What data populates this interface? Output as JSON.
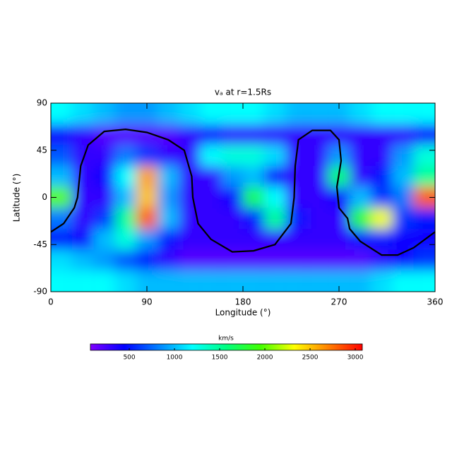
{
  "chart_data": {
    "type": "heatmap",
    "title": "vₐ at r=1.5Rs",
    "xlabel": "Longitude (°)",
    "ylabel": "Latitude (°)",
    "xlim": [
      0,
      360
    ],
    "ylim": [
      -90,
      90
    ],
    "xticks": [
      0,
      90,
      180,
      270,
      360
    ],
    "yticks": [
      -90,
      -45,
      0,
      45,
      90
    ],
    "x": [
      10,
      30,
      50,
      70,
      90,
      110,
      130,
      150,
      170,
      190,
      210,
      230,
      250,
      270,
      290,
      310,
      330,
      350
    ],
    "y": [
      80,
      60,
      40,
      20,
      0,
      -20,
      -40,
      -60,
      -80
    ],
    "z": [
      [
        1200,
        1100,
        1000,
        900,
        900,
        1000,
        1100,
        1200,
        1200,
        1200,
        1100,
        1000,
        1000,
        1000,
        1100,
        1200,
        1200,
        1200
      ],
      [
        400,
        300,
        200,
        200,
        200,
        200,
        300,
        400,
        300,
        300,
        300,
        300,
        300,
        300,
        300,
        300,
        300,
        400
      ],
      [
        700,
        300,
        300,
        800,
        600,
        300,
        300,
        1200,
        1300,
        1300,
        1100,
        300,
        300,
        900,
        300,
        300,
        900,
        1300
      ],
      [
        1000,
        300,
        400,
        1200,
        2600,
        1000,
        300,
        300,
        900,
        1000,
        400,
        300,
        300,
        1600,
        300,
        500,
        1000,
        1500
      ],
      [
        2000,
        300,
        300,
        1000,
        2500,
        900,
        300,
        300,
        400,
        1700,
        1200,
        300,
        300,
        400,
        1000,
        600,
        800,
        2800
      ],
      [
        800,
        300,
        600,
        1500,
        2800,
        1000,
        300,
        300,
        300,
        500,
        1500,
        500,
        300,
        300,
        1800,
        2300,
        600,
        500
      ],
      [
        500,
        400,
        1000,
        1300,
        900,
        500,
        300,
        300,
        300,
        300,
        300,
        300,
        300,
        300,
        500,
        500,
        400,
        400
      ],
      [
        1100,
        1000,
        900,
        700,
        500,
        300,
        200,
        200,
        200,
        200,
        200,
        200,
        200,
        200,
        200,
        300,
        400,
        600
      ],
      [
        1200,
        1200,
        1200,
        1100,
        1000,
        1000,
        1000,
        1000,
        1000,
        1000,
        1000,
        1000,
        1000,
        1000,
        1000,
        1100,
        1200,
        1200
      ]
    ],
    "clim": [
      70,
      3078
    ],
    "colormap": [
      "#8000ff",
      "#0000ff",
      "#0080ff",
      "#00ffff",
      "#00ff80",
      "#40ff00",
      "#ffff00",
      "#ff8000",
      "#ff0000"
    ],
    "colorbar_label": "km/s",
    "colorbar_ticks": [
      500,
      1000,
      1500,
      2000,
      2500,
      3000
    ],
    "contour": {
      "color": "#000000",
      "x": [
        0,
        12,
        22,
        25,
        28,
        35,
        50,
        70,
        90,
        110,
        125,
        132,
        133,
        138,
        150,
        170,
        190,
        210,
        225,
        228,
        229,
        232,
        245,
        262,
        270,
        272,
        268,
        270,
        278,
        280,
        290,
        310,
        325,
        340,
        360
      ],
      "y": [
        -33,
        -25,
        -10,
        0,
        30,
        50,
        63,
        65,
        62,
        55,
        45,
        20,
        0,
        -25,
        -40,
        -52,
        -51,
        -45,
        -25,
        0,
        30,
        55,
        64,
        64,
        55,
        35,
        10,
        -10,
        -20,
        -30,
        -42,
        -55,
        -55,
        -48,
        -33
      ]
    }
  }
}
